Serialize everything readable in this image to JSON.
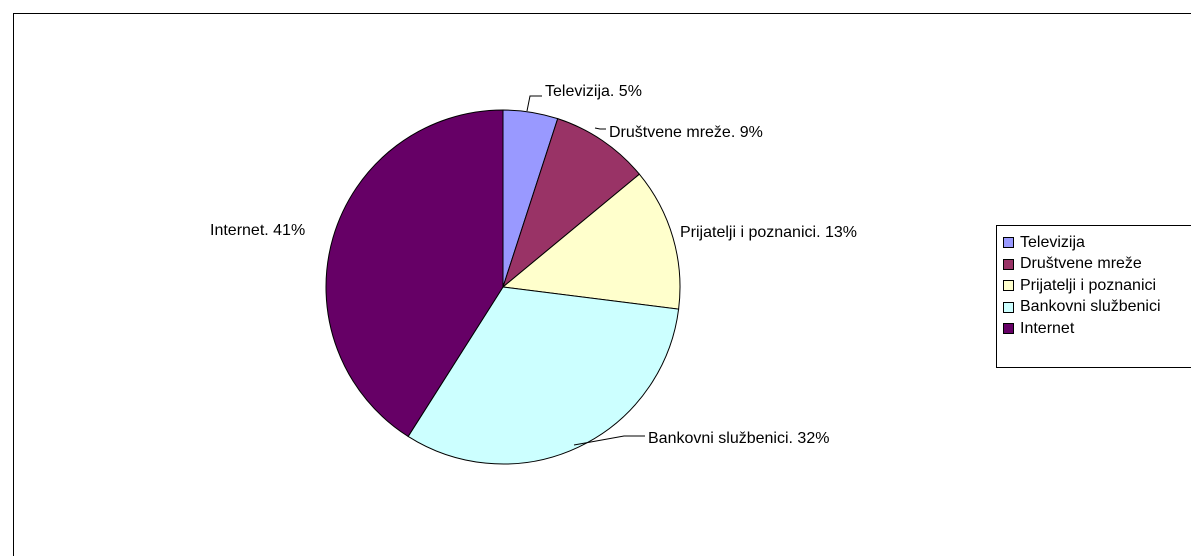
{
  "chart_data": {
    "type": "pie",
    "title": "",
    "categories": [
      "Televizija",
      "Društvene mreže",
      "Prijatelji i poznanici",
      "Bankovni službenici",
      "Internet"
    ],
    "values": [
      5,
      9,
      13,
      32,
      41
    ],
    "colors": [
      "#9999ff",
      "#993366",
      "#ffffcc",
      "#ccffff",
      "#660066"
    ],
    "data_labels": [
      "Televizija. 5%",
      "Društvene mreže. 9%",
      "Prijatelji i poznanici. 13%",
      "Bankovni službenici. 32%",
      "Internet. 41%"
    ],
    "legend": {
      "placement": "right",
      "entries": [
        "Televizija",
        "Društvene mreže",
        "Prijatelji i poznanici",
        "Bankovni službenici",
        "Internet"
      ]
    }
  }
}
